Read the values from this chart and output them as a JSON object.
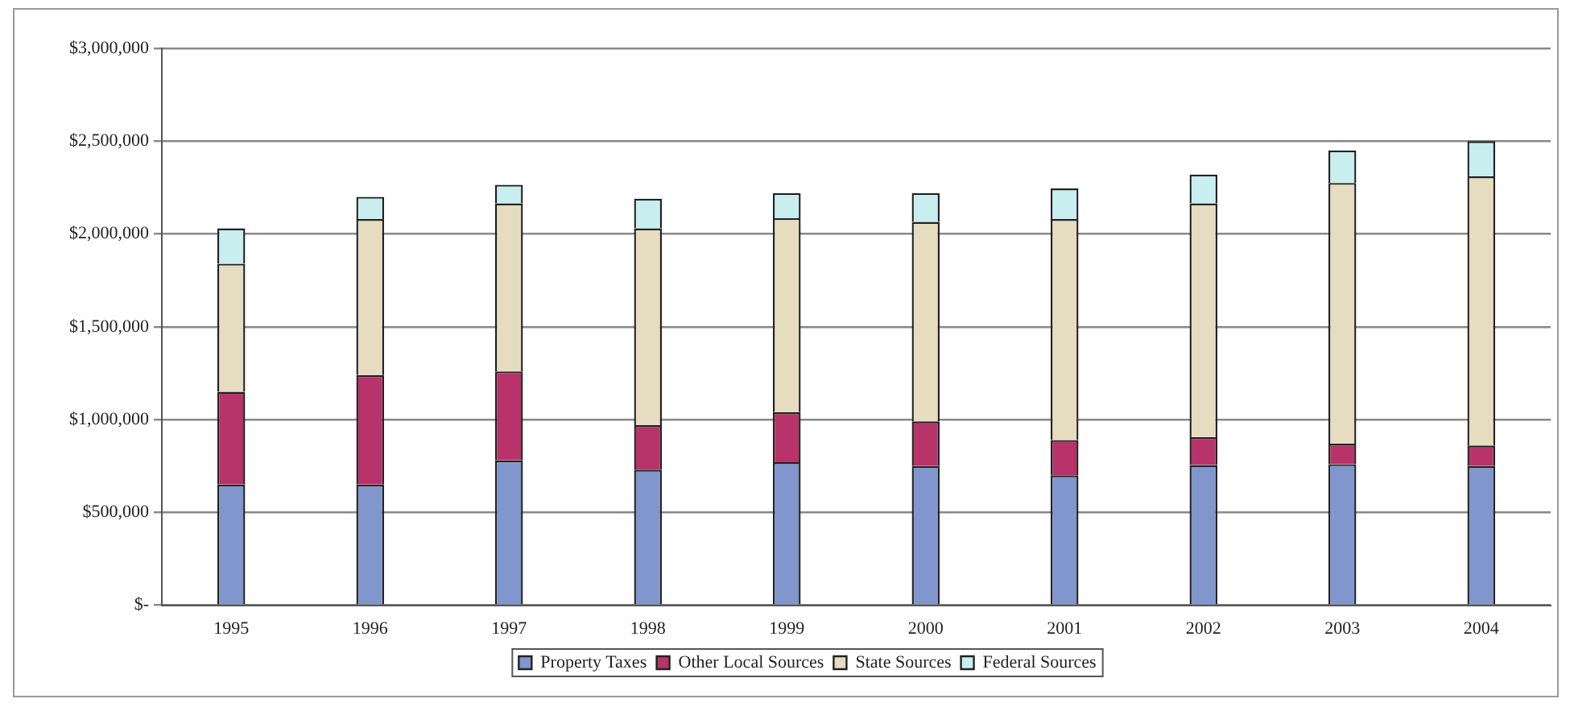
{
  "chart_data": {
    "type": "bar",
    "stacked": true,
    "categories": [
      "1995",
      "1996",
      "1997",
      "1998",
      "1999",
      "2000",
      "2001",
      "2002",
      "2003",
      "2004"
    ],
    "series": [
      {
        "name": "Property Taxes",
        "color": "#8096cc",
        "values": [
          650000,
          650000,
          780000,
          730000,
          770000,
          750000,
          700000,
          755000,
          760000,
          750000
        ]
      },
      {
        "name": "Other Local Sources",
        "color": "#b8336a",
        "values": [
          500000,
          590000,
          480000,
          240000,
          270000,
          240000,
          190000,
          150000,
          110000,
          110000
        ]
      },
      {
        "name": "State Sources",
        "color": "#e6dcc0",
        "values": [
          690000,
          840000,
          905000,
          1060000,
          1045000,
          1075000,
          1190000,
          1260000,
          1405000,
          1450000
        ]
      },
      {
        "name": "Federal Sources",
        "color": "#c8eef0",
        "values": [
          190000,
          120000,
          100000,
          160000,
          135000,
          155000,
          165000,
          155000,
          175000,
          190000
        ]
      }
    ],
    "ylim": [
      0,
      3000000
    ],
    "yticks": [
      {
        "value": 0,
        "label": "$-"
      },
      {
        "value": 500000,
        "label": "$500,000"
      },
      {
        "value": 1000000,
        "label": "$1,000,000"
      },
      {
        "value": 1500000,
        "label": "$1,500,000"
      },
      {
        "value": 2000000,
        "label": "$2,000,000"
      },
      {
        "value": 2500000,
        "label": "$2,500,000"
      },
      {
        "value": 3000000,
        "label": "$3,000,000"
      }
    ],
    "grid": "y",
    "legend": "bottom"
  }
}
